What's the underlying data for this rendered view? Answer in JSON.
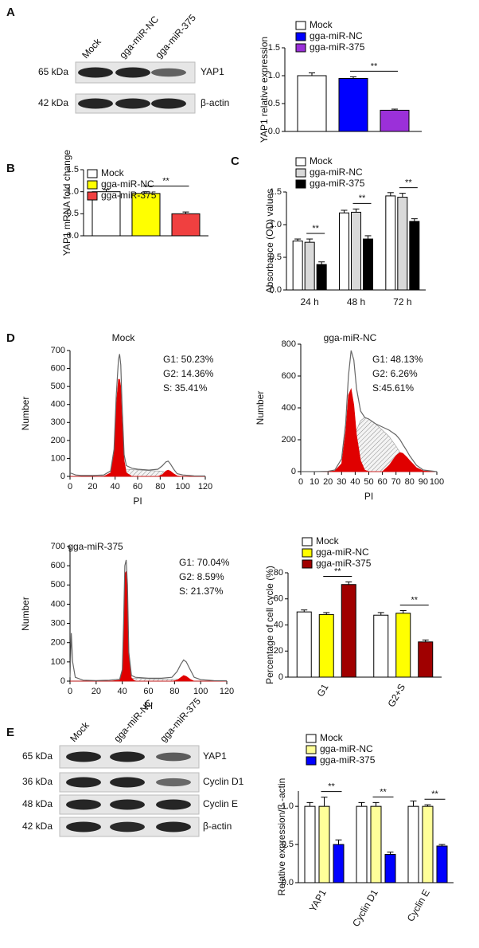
{
  "panel_labels": [
    "A",
    "B",
    "C",
    "D",
    "E"
  ],
  "blots": [
    {
      "lanes": [
        "Mock",
        "gga-miR-NC",
        "gga-miR-375"
      ],
      "rows": [
        {
          "size": "65 kDa",
          "protein": "YAP1"
        },
        {
          "size": "42 kDa",
          "protein": "β-actin"
        }
      ]
    },
    {
      "lanes": [
        "Mock",
        "gga-miR-NC",
        "gga-miR-375"
      ],
      "rows": [
        {
          "size": "65 kDa",
          "protein": "YAP1"
        },
        {
          "size": "36 kDa",
          "protein": "Cyclin D1"
        },
        {
          "size": "48 kDa",
          "protein": "Cyclin E"
        },
        {
          "size": "42 kDa",
          "protein": "β-actin"
        }
      ]
    }
  ],
  "chart_data": [
    {
      "type": "bar",
      "ylabel": "YAP1 relative expression",
      "categories": [
        null
      ],
      "series": [
        {
          "name": "Mock",
          "color": "#ffffff",
          "values": [
            1.0
          ],
          "errors": [
            0.05
          ]
        },
        {
          "name": "gga-miR-NC",
          "color": "#0000ff",
          "values": [
            0.95
          ],
          "errors": [
            0.03
          ]
        },
        {
          "name": "gga-miR-375",
          "color": "#9b30d9",
          "values": [
            0.38
          ],
          "errors": [
            0.02
          ]
        }
      ],
      "ylim": [
        0,
        1.5
      ],
      "yticks": [
        {
          "value": 0,
          "label": "0.0"
        },
        {
          "value": 0.5,
          "label": "0.5"
        },
        {
          "value": 1,
          "label": "1.0"
        },
        {
          "value": 1.5,
          "label": "1.5"
        }
      ],
      "significance": [
        "**"
      ]
    },
    {
      "type": "bar",
      "ylabel": "YAP1 mRNA fold change",
      "categories": [
        null
      ],
      "series": [
        {
          "name": "Mock",
          "color": "#ffffff",
          "values": [
            1.0
          ],
          "errors": [
            0.05
          ]
        },
        {
          "name": "gga-miR-NC",
          "color": "#ffff00",
          "values": [
            0.96
          ],
          "errors": [
            0.04
          ]
        },
        {
          "name": "gga-miR-375",
          "color": "#f04040",
          "values": [
            0.5
          ],
          "errors": [
            0.04
          ]
        }
      ],
      "ylim": [
        0,
        1.5
      ],
      "yticks": [
        {
          "value": 0,
          "label": "0.0"
        },
        {
          "value": 0.5,
          "label": "0.5"
        },
        {
          "value": 1,
          "label": "1.0"
        },
        {
          "value": 1.5,
          "label": "1.5"
        }
      ],
      "significance": [
        "**"
      ]
    },
    {
      "type": "bar",
      "ylabel": "Absorbance (OD) values",
      "categories": [
        "24 h",
        "48 h",
        "72 h"
      ],
      "series": [
        {
          "name": "Mock",
          "color": "#ffffff",
          "values": [
            0.75,
            1.18,
            1.44
          ],
          "errors": [
            0.03,
            0.04,
            0.05
          ]
        },
        {
          "name": "gga-miR-NC",
          "color": "#d9d9d9",
          "values": [
            0.73,
            1.19,
            1.42
          ],
          "errors": [
            0.05,
            0.05,
            0.06
          ]
        },
        {
          "name": "gga-miR-375",
          "color": "#000000",
          "values": [
            0.39,
            0.78,
            1.05
          ],
          "errors": [
            0.04,
            0.05,
            0.04
          ]
        }
      ],
      "ylim": [
        0,
        1.5
      ],
      "yticks": [
        {
          "value": 0,
          "label": "0.0"
        },
        {
          "value": 0.5,
          "label": "0.5"
        },
        {
          "value": 1,
          "label": "1.0"
        },
        {
          "value": 1.5,
          "label": "1.5"
        }
      ],
      "significance": [
        "**",
        "**",
        "**"
      ]
    },
    {
      "type": "flow",
      "title": "Mock",
      "xlabel": "PI",
      "ylabel": "Number",
      "annotations": [
        "G1: 50.23%",
        "G2: 14.36%",
        "S: 35.41%"
      ],
      "xlim": [
        0,
        120
      ],
      "xticks": [
        0,
        20,
        40,
        60,
        80,
        100,
        120
      ],
      "ylim": [
        0,
        700
      ],
      "yticks": [
        0,
        100,
        200,
        300,
        400,
        500,
        600,
        700
      ],
      "x": [
        0,
        5,
        10,
        20,
        30,
        36,
        39,
        41,
        43,
        44,
        45,
        46,
        48,
        50,
        55,
        60,
        70,
        78,
        82,
        85,
        87,
        89,
        92,
        95,
        100,
        110,
        120
      ],
      "series": [
        {
          "color": "#9a9a9a",
          "hatch": true,
          "values": [
            0,
            0,
            0,
            0,
            3,
            10,
            25,
            35,
            40,
            40,
            40,
            40,
            40,
            40,
            38,
            36,
            32,
            30,
            28,
            22,
            15,
            8,
            3,
            0,
            0,
            0,
            0
          ]
        },
        {
          "color": "#e00000",
          "values": [
            0,
            0,
            0,
            0,
            0,
            20,
            130,
            400,
            540,
            540,
            500,
            330,
            90,
            20,
            0,
            0,
            0,
            0,
            0,
            0,
            0,
            0,
            0,
            0,
            0,
            0,
            0
          ]
        },
        {
          "color": "#e00000",
          "values": [
            0,
            0,
            0,
            0,
            0,
            0,
            0,
            0,
            0,
            0,
            0,
            0,
            0,
            0,
            0,
            0,
            0,
            0,
            10,
            30,
            35,
            30,
            15,
            3,
            0,
            0,
            0
          ]
        },
        {
          "color": "#666666",
          "line": true,
          "values": [
            20,
            8,
            5,
            5,
            8,
            30,
            150,
            450,
            650,
            680,
            620,
            420,
            120,
            60,
            45,
            40,
            35,
            40,
            60,
            80,
            85,
            70,
            40,
            15,
            8,
            3,
            2
          ]
        }
      ]
    },
    {
      "type": "flow",
      "title": "gga-miR-NC",
      "xlabel": "PI",
      "ylabel": "Number",
      "annotations": [
        "G1: 48.13%",
        "G2: 6.26%",
        "S:45.61%"
      ],
      "xlim": [
        0,
        100
      ],
      "xticks": [
        0,
        10,
        20,
        30,
        40,
        50,
        60,
        70,
        80,
        90,
        100
      ],
      "ylim": [
        0,
        800
      ],
      "yticks": [
        0,
        200,
        400,
        600,
        800
      ],
      "x": [
        0,
        10,
        20,
        25,
        30,
        33,
        35,
        37,
        39,
        41,
        44,
        47,
        50,
        55,
        60,
        65,
        70,
        73,
        75,
        78,
        80,
        85,
        90,
        100
      ],
      "series": [
        {
          "color": "#9a9a9a",
          "hatch": true,
          "values": [
            0,
            0,
            0,
            0,
            10,
            40,
            90,
            140,
            200,
            260,
            320,
            340,
            330,
            300,
            260,
            220,
            160,
            120,
            90,
            50,
            30,
            10,
            0,
            0
          ]
        },
        {
          "color": "#e00000",
          "values": [
            0,
            0,
            0,
            5,
            50,
            250,
            480,
            520,
            420,
            230,
            70,
            10,
            0,
            0,
            0,
            0,
            0,
            0,
            0,
            0,
            0,
            0,
            0,
            0
          ]
        },
        {
          "color": "#e00000",
          "values": [
            0,
            0,
            0,
            0,
            0,
            0,
            0,
            0,
            0,
            0,
            0,
            0,
            0,
            0,
            0,
            40,
            100,
            120,
            115,
            90,
            70,
            25,
            5,
            0
          ]
        },
        {
          "color": "#666666",
          "line": true,
          "values": [
            0,
            0,
            2,
            10,
            80,
            300,
            600,
            760,
            700,
            520,
            380,
            340,
            330,
            300,
            280,
            260,
            230,
            200,
            170,
            130,
            100,
            40,
            10,
            0
          ]
        }
      ]
    },
    {
      "type": "flow",
      "title": "gga-miR-375",
      "xlabel": "PI",
      "ylabel": "Number",
      "annotations": [
        "G1: 70.04%",
        "G2: 8.59%",
        "S: 21.37%"
      ],
      "xlim": [
        0,
        120
      ],
      "xticks": [
        0,
        20,
        40,
        60,
        80,
        100,
        120
      ],
      "ylim": [
        0,
        700
      ],
      "yticks": [
        0,
        100,
        200,
        300,
        400,
        500,
        600,
        700
      ],
      "x": [
        0,
        1,
        2,
        4,
        10,
        20,
        30,
        38,
        40,
        41,
        42,
        43,
        44,
        45,
        47,
        50,
        60,
        70,
        78,
        82,
        85,
        87,
        89,
        92,
        95,
        100,
        110,
        120
      ],
      "series": [
        {
          "color": "#9a9a9a",
          "hatch": true,
          "values": [
            0,
            0,
            0,
            0,
            0,
            0,
            0,
            0,
            5,
            10,
            15,
            15,
            15,
            15,
            15,
            15,
            12,
            10,
            10,
            10,
            8,
            5,
            3,
            0,
            0,
            0,
            0,
            0
          ]
        },
        {
          "color": "#e00000",
          "values": [
            0,
            0,
            0,
            0,
            0,
            0,
            0,
            5,
            50,
            280,
            560,
            570,
            460,
            130,
            15,
            0,
            0,
            0,
            0,
            0,
            0,
            0,
            0,
            0,
            0,
            0,
            0,
            0
          ]
        },
        {
          "color": "#e00000",
          "values": [
            0,
            0,
            0,
            0,
            0,
            0,
            0,
            0,
            0,
            0,
            0,
            0,
            0,
            0,
            0,
            0,
            0,
            0,
            0,
            5,
            20,
            30,
            25,
            10,
            0,
            0,
            0,
            0
          ]
        },
        {
          "color": "#666666",
          "line": true,
          "values": [
            20,
            250,
            100,
            20,
            5,
            3,
            5,
            10,
            60,
            300,
            600,
            630,
            500,
            150,
            30,
            20,
            15,
            15,
            20,
            50,
            90,
            110,
            100,
            60,
            20,
            8,
            3,
            2
          ]
        }
      ]
    },
    {
      "type": "bar",
      "ylabel": "Percentage of cell cycle (%)",
      "categories": [
        "G1",
        "G2+S"
      ],
      "series": [
        {
          "name": "Mock",
          "color": "#ffffff",
          "values": [
            50,
            47.5
          ],
          "errors": [
            1.5,
            2
          ]
        },
        {
          "name": "gga-miR-NC",
          "color": "#ffff00",
          "values": [
            48,
            49
          ],
          "errors": [
            1.5,
            2
          ]
        },
        {
          "name": "gga-miR-375",
          "color": "#a00000",
          "values": [
            71,
            27
          ],
          "errors": [
            2,
            1.5
          ]
        }
      ],
      "ylim": [
        0,
        80
      ],
      "yticks": [
        0,
        20,
        40,
        60,
        80
      ],
      "significance": [
        "**",
        "**"
      ]
    },
    {
      "type": "bar",
      "ylabel": "Relative expression/β -actin",
      "categories": [
        "YAP1",
        "Cyclin D1",
        "Cyclin E"
      ],
      "series": [
        {
          "name": "Mock",
          "color": "#ffffff",
          "values": [
            1.0,
            1.0,
            1.0
          ],
          "errors": [
            0.05,
            0.05,
            0.07
          ]
        },
        {
          "name": "gga-miR-NC",
          "color": "#ffff99",
          "values": [
            1.0,
            1.0,
            1.0
          ],
          "errors": [
            0.12,
            0.05,
            0.02
          ]
        },
        {
          "name": "gga-miR-375",
          "color": "#0000ff",
          "values": [
            0.5,
            0.37,
            0.48
          ],
          "errors": [
            0.06,
            0.03,
            0.02
          ]
        }
      ],
      "ylim": [
        0,
        1.2
      ],
      "yticks": [
        {
          "value": 0,
          "label": "0.0"
        },
        {
          "value": 0.5,
          "label": "0.5"
        },
        {
          "value": 1,
          "label": "1.0"
        }
      ],
      "significance": [
        "**",
        "**",
        "**"
      ]
    }
  ]
}
